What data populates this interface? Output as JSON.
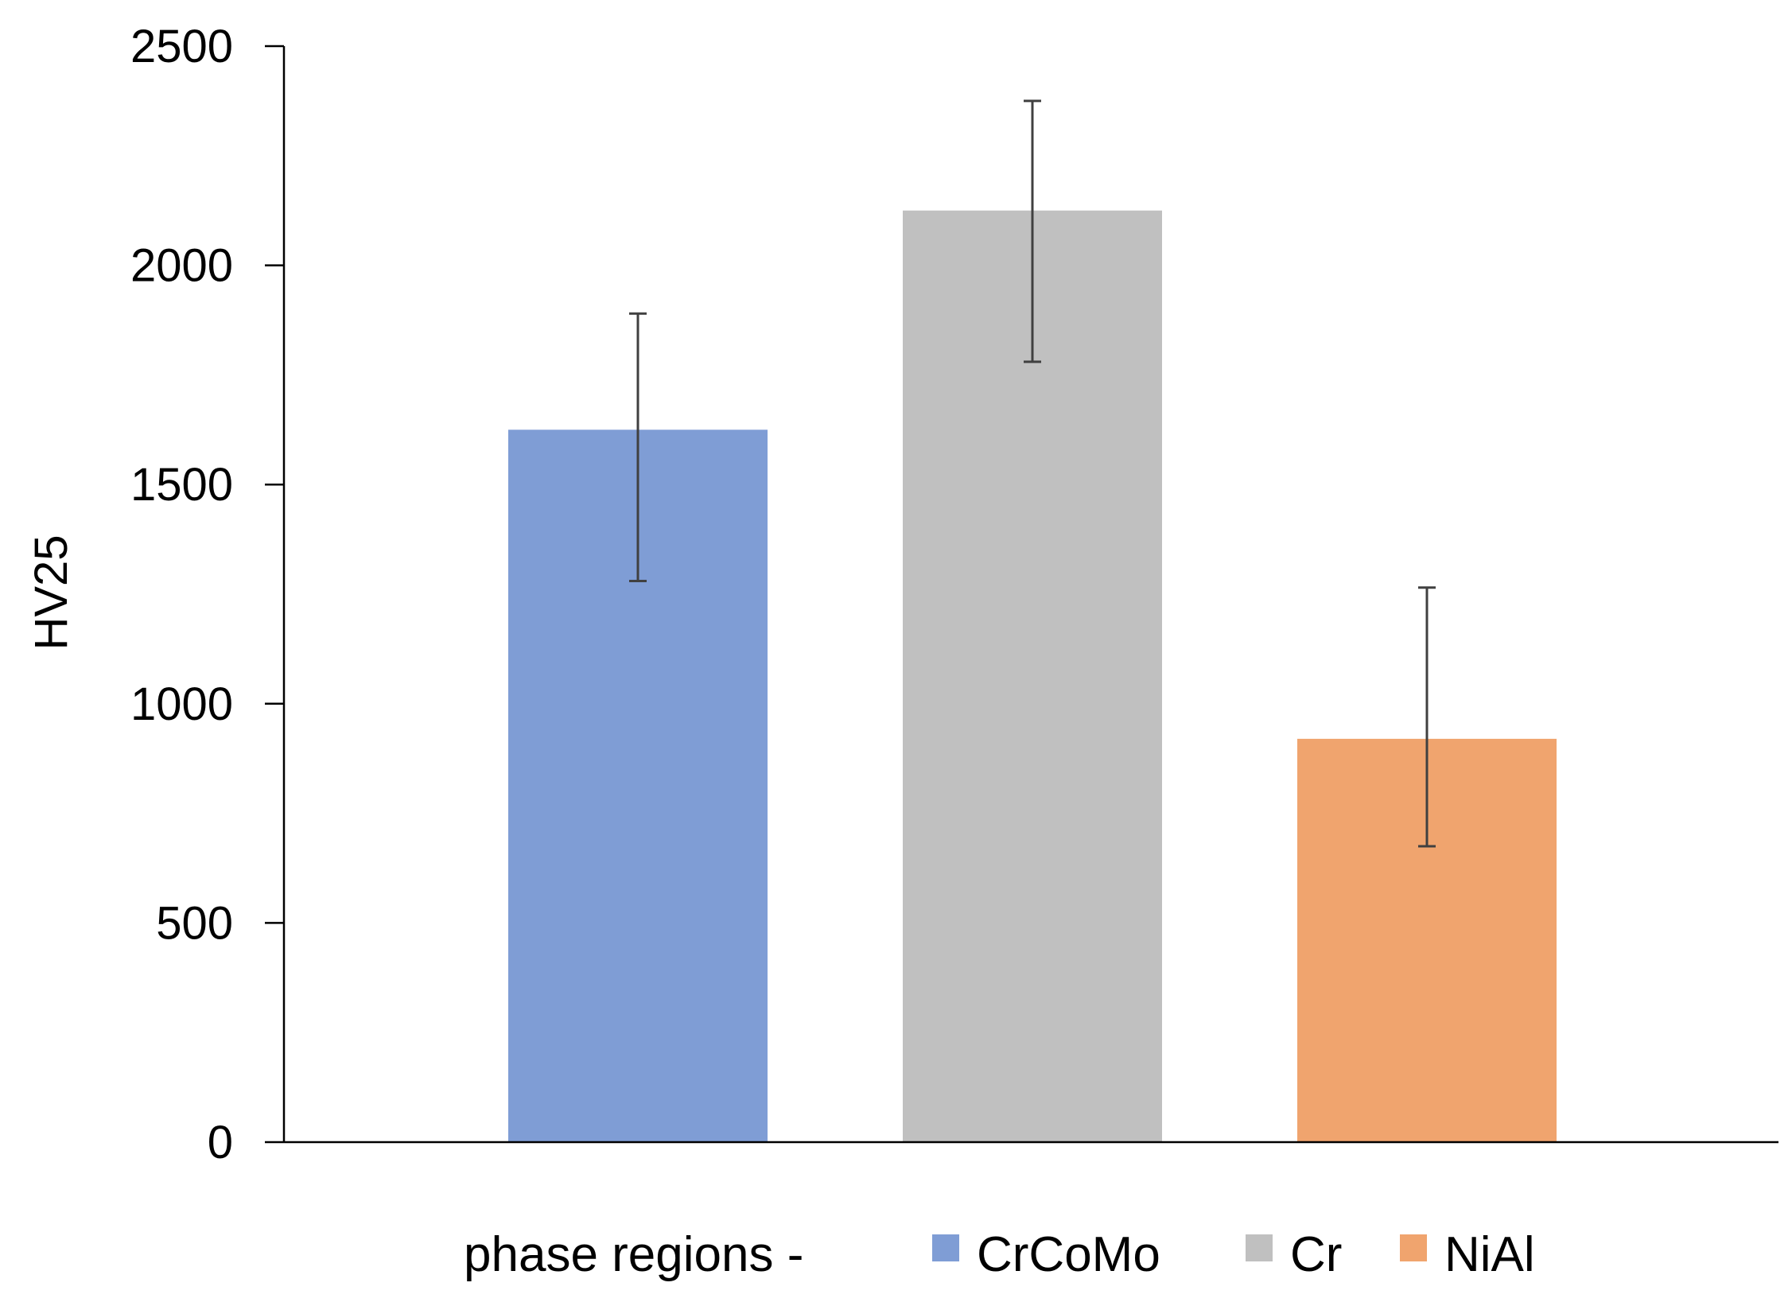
{
  "chart_data": {
    "type": "bar",
    "title": "",
    "xlabel": "",
    "ylabel": "HV25",
    "ylim": [
      0,
      2500
    ],
    "yticks": [
      0,
      500,
      1000,
      1500,
      2000,
      2500
    ],
    "grid": false,
    "legend": {
      "placement": "bottom",
      "prefix": "phase regions -",
      "entries": [
        "CrCoMo",
        "Cr",
        "NiAl"
      ]
    },
    "series": [
      {
        "name": "CrCoMo",
        "value": 1625,
        "error_low": 1280,
        "error_high": 1890,
        "color": "#7f9dd5"
      },
      {
        "name": "Cr",
        "value": 2125,
        "error_low": 1780,
        "error_high": 2375,
        "color": "#c0c0c0"
      },
      {
        "name": "NiAl",
        "value": 920,
        "error_low": 675,
        "error_high": 1265,
        "color": "#f0a46e"
      }
    ]
  }
}
